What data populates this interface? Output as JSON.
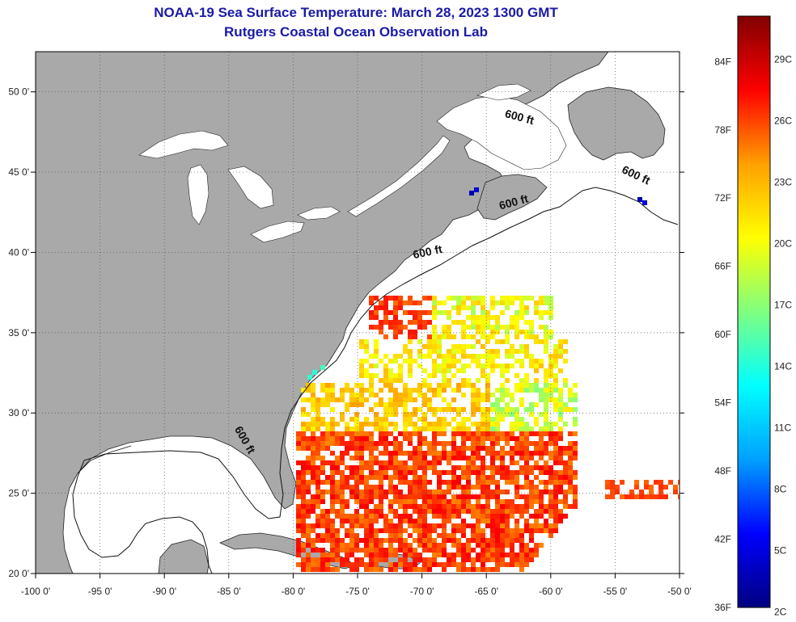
{
  "title": {
    "line1": "NOAA-19 Sea Surface Temperature:  March 28, 2023 1300 GMT",
    "line2": "Rutgers Coastal Ocean Observation Lab"
  },
  "map": {
    "lon_range": [
      -100,
      -50
    ],
    "lat_range": [
      20,
      52.5
    ],
    "lon_ticks": [
      {
        "v": -100,
        "t": "-100 0'"
      },
      {
        "v": -95,
        "t": "-95 0'"
      },
      {
        "v": -90,
        "t": "-90 0'"
      },
      {
        "v": -85,
        "t": "-85 0'"
      },
      {
        "v": -80,
        "t": "-80 0'"
      },
      {
        "v": -75,
        "t": "-75 0'"
      },
      {
        "v": -70,
        "t": "-70 0'"
      },
      {
        "v": -65,
        "t": "-65 0'"
      },
      {
        "v": -60,
        "t": "-60 0'"
      },
      {
        "v": -55,
        "t": "-55 0'"
      },
      {
        "v": -50,
        "t": "-50 0'"
      }
    ],
    "lat_ticks": [
      {
        "v": 20,
        "t": "20 0'"
      },
      {
        "v": 25,
        "t": "25 0'"
      },
      {
        "v": 30,
        "t": "30 0'"
      },
      {
        "v": 35,
        "t": "35 0'"
      },
      {
        "v": 40,
        "t": "40 0'"
      },
      {
        "v": 45,
        "t": "45 0'"
      },
      {
        "v": 50,
        "t": "50 0'"
      }
    ],
    "grid": "dotted",
    "land_color": "#a9a9a9",
    "ocean_color": "#ffffff",
    "contour_labels": [
      {
        "text": "600 ft",
        "lon": -62.5,
        "lat": 48.2,
        "rot": 15
      },
      {
        "text": "600 ft",
        "lon": -53.5,
        "lat": 44.6,
        "rot": 25
      },
      {
        "text": "600 ft",
        "lon": -62.8,
        "lat": 42.9,
        "rot": -15
      },
      {
        "text": "600 ft",
        "lon": -69.5,
        "lat": 39.8,
        "rot": -12
      },
      {
        "text": "600 ft",
        "lon": -84.0,
        "lat": 28.2,
        "rot": 60
      }
    ]
  },
  "colorbar": {
    "min_f": 36,
    "max_f": 88,
    "f_labels": [
      "84F",
      "78F",
      "72F",
      "66F",
      "60F",
      "54F",
      "48F",
      "42F",
      "36F"
    ],
    "f_values": [
      84,
      78,
      72,
      66,
      60,
      54,
      48,
      42,
      36
    ],
    "c_labels": [
      "29C",
      "26C",
      "23C",
      "20C",
      "17C",
      "14C",
      "11C",
      "8C",
      "5C",
      "2C"
    ],
    "c_values": [
      29,
      26,
      23,
      20,
      17,
      14,
      11,
      8,
      5,
      2
    ],
    "colors": [
      "#000080",
      "#0000ff",
      "#00a0ff",
      "#00ffff",
      "#80ff80",
      "#ffff00",
      "#ffa000",
      "#ff0000",
      "#800000"
    ]
  }
}
